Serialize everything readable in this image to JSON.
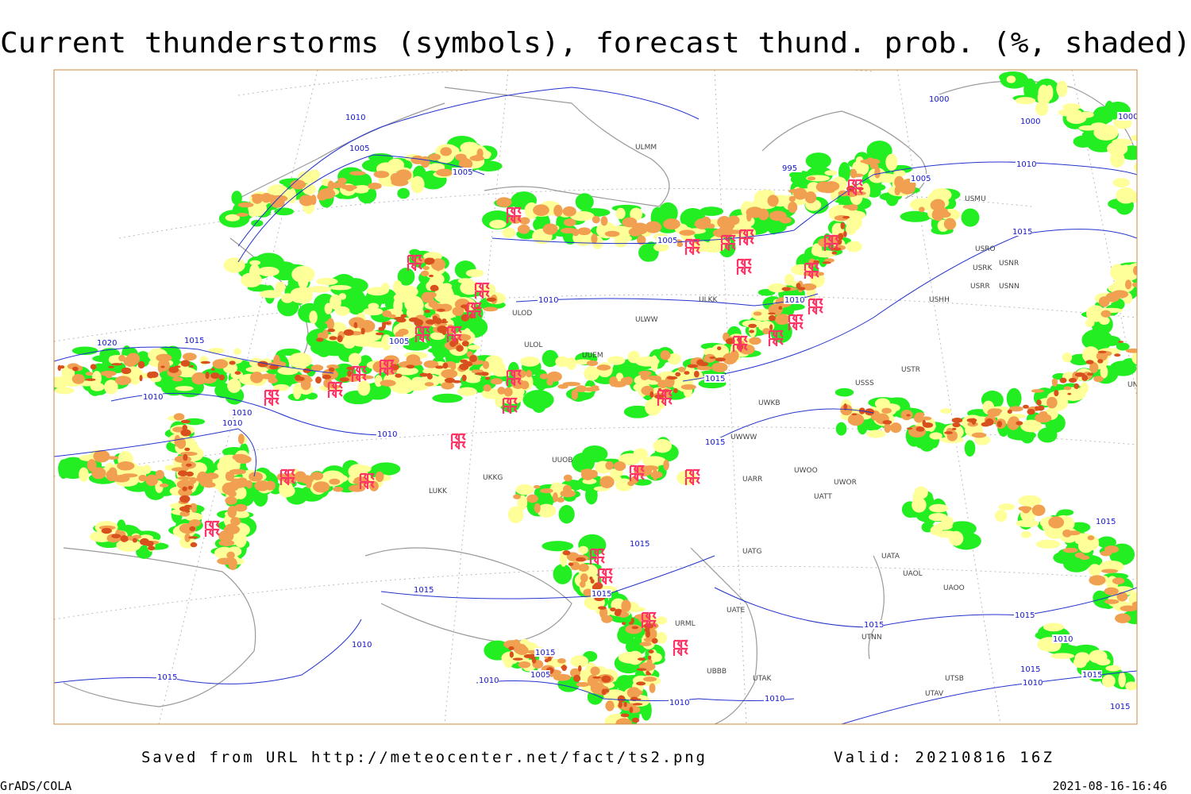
{
  "title": "Current thunderstorms (symbols), forecast thund. prob. (%, shaded)",
  "footer": {
    "saved_from": "Saved from URL http://meteocenter.net/fact/ts2.png",
    "valid": "Valid: 20210816 16Z",
    "software": "GrADS/COLA",
    "timestamp": "2021-08-16-16:46"
  },
  "stations": [
    "ULMM",
    "ULOD",
    "ULOL",
    "UUEM",
    "ULWW",
    "ULKK",
    "UUOB",
    "UKKG",
    "LUKK",
    "USSS",
    "USTR",
    "UWKB",
    "UWWW",
    "UARR",
    "UWOO",
    "UWOR",
    "UATT",
    "UATG",
    "UATA",
    "UAOL",
    "UAOO",
    "UTNN",
    "UATE",
    "URML",
    "UBBB",
    "UTAK",
    "UTAV",
    "UTSB",
    "USHH",
    "USRR",
    "USNN",
    "USRK",
    "USRO",
    "USNR",
    "USMU",
    "UNBB"
  ],
  "isobar_labels": [
    "1010",
    "1005",
    "1005",
    "1000",
    "1000",
    "995",
    "1005",
    "1010",
    "1015",
    "1005",
    "1010",
    "1010",
    "1005",
    "1020",
    "1015",
    "1010",
    "1010",
    "1010",
    "1010",
    "1015",
    "1015",
    "1015",
    "1015",
    "1015",
    "1015",
    "1010",
    "1015",
    "1010",
    "1005",
    "1015",
    "1010",
    "1010",
    "1015",
    "1015",
    "1010",
    "1015",
    "1010",
    "1015",
    "1015",
    "1000"
  ]
}
